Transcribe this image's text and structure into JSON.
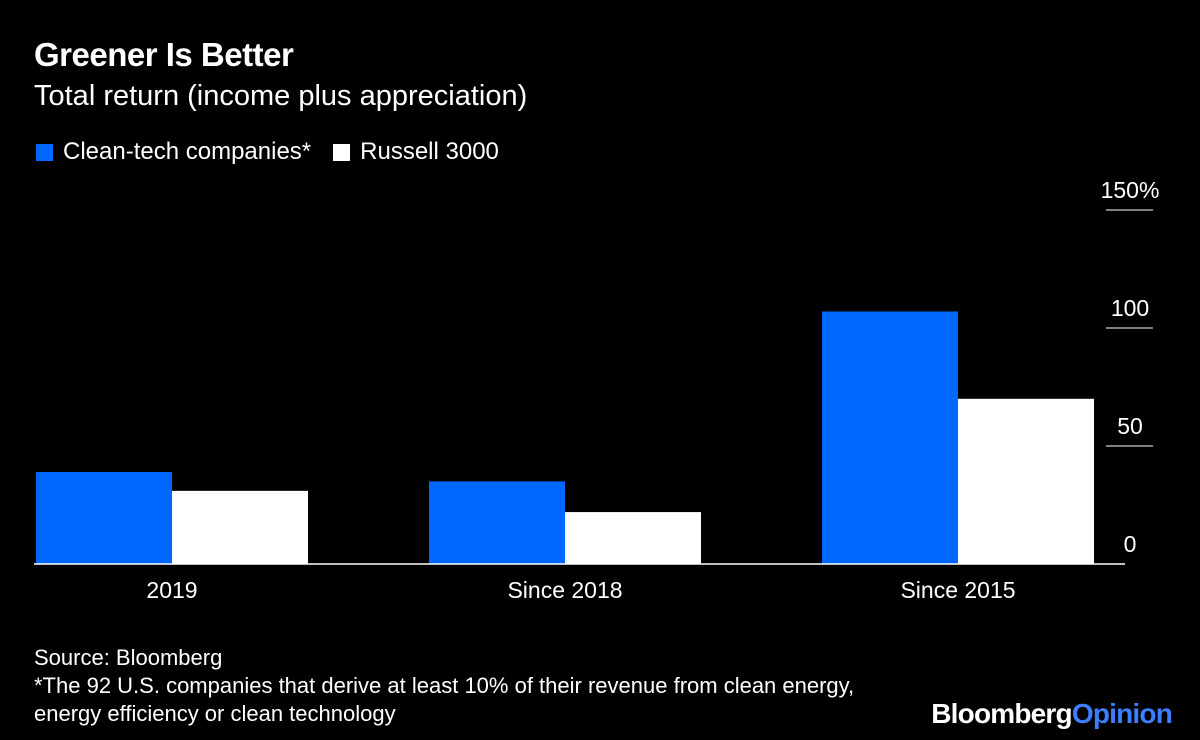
{
  "header": {
    "title": "Greener Is Better",
    "subtitle": "Total return (income plus appreciation)"
  },
  "legend": {
    "items": [
      {
        "label": "Clean-tech companies*",
        "color": "#0068ff"
      },
      {
        "label": "Russell 3000",
        "color": "#ffffff"
      }
    ]
  },
  "chart_data": {
    "type": "bar",
    "categories": [
      "2019",
      "Since 2018",
      "Since 2015"
    ],
    "series": [
      {
        "name": "Clean-tech companies*",
        "color": "#0068ff",
        "values": [
          39,
          35,
          107
        ]
      },
      {
        "name": "Russell 3000",
        "color": "#ffffff",
        "values": [
          31,
          22,
          70
        ]
      }
    ],
    "ylim": [
      0,
      150
    ],
    "yticks": [
      0,
      50,
      100,
      150
    ],
    "ytick_labels": [
      "0",
      "50",
      "100",
      "150%"
    ],
    "y_axis_side": "right",
    "grid": false,
    "legend_position": "top-left",
    "background": "#000000"
  },
  "footer": {
    "source": "Source: Bloomberg",
    "note": "*The 92 U.S. companies that derive at least 10% of their revenue from clean energy, energy efficiency or clean technology"
  },
  "brand": {
    "part1": "Bloomberg",
    "part2": "Opinion"
  }
}
